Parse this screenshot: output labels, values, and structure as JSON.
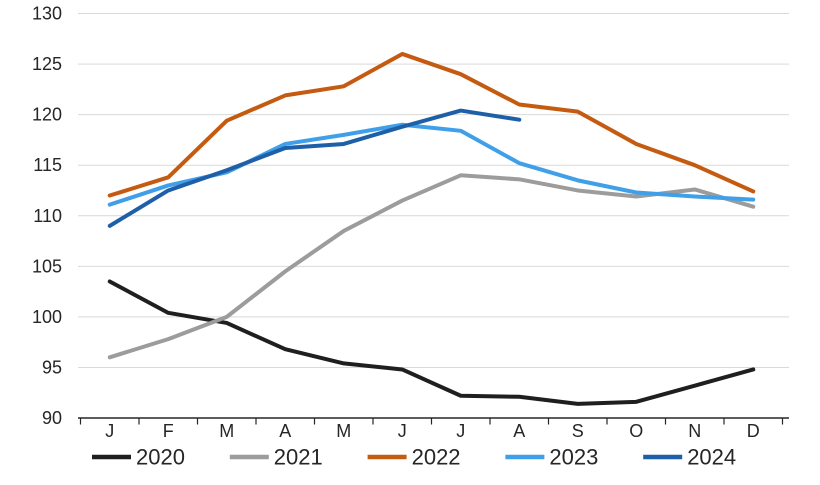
{
  "chart_data": {
    "type": "line",
    "title": "",
    "xlabel": "",
    "ylabel": "",
    "categories": [
      "J",
      "F",
      "M",
      "A",
      "M",
      "J",
      "J",
      "A",
      "S",
      "O",
      "N",
      "D"
    ],
    "y_ticks": [
      90,
      95,
      100,
      105,
      110,
      115,
      120,
      125,
      130
    ],
    "ylim": [
      90,
      130
    ],
    "grid": "horizontal",
    "legend_position": "bottom",
    "series": [
      {
        "name": "2020",
        "color": "#1f1f1f",
        "values": [
          103.5,
          100.4,
          99.4,
          96.8,
          95.4,
          94.8,
          92.2,
          92.1,
          91.4,
          91.6,
          93.2,
          94.8
        ]
      },
      {
        "name": "2021",
        "color": "#9c9c9c",
        "values": [
          96.0,
          97.8,
          100.0,
          104.5,
          108.5,
          111.5,
          114.0,
          113.6,
          112.5,
          111.9,
          112.6,
          110.9
        ]
      },
      {
        "name": "2022",
        "color": "#c55a11",
        "values": [
          112.0,
          113.8,
          119.4,
          121.9,
          122.8,
          126.0,
          124.0,
          121.0,
          120.3,
          117.1,
          115.0,
          112.4
        ]
      },
      {
        "name": "2023",
        "color": "#3fa0e9",
        "values": [
          111.1,
          113.0,
          114.3,
          117.1,
          118.0,
          119.0,
          118.4,
          115.2,
          113.5,
          112.3,
          111.9,
          111.6
        ]
      },
      {
        "name": "2024",
        "color": "#1e5fa8",
        "values": [
          109.0,
          112.5,
          114.5,
          116.7,
          117.1,
          118.8,
          120.4,
          119.5
        ]
      }
    ],
    "colors": {
      "grid": "#d9d9d9",
      "axis": "#262626",
      "label": "#262626",
      "background": "#ffffff"
    }
  }
}
